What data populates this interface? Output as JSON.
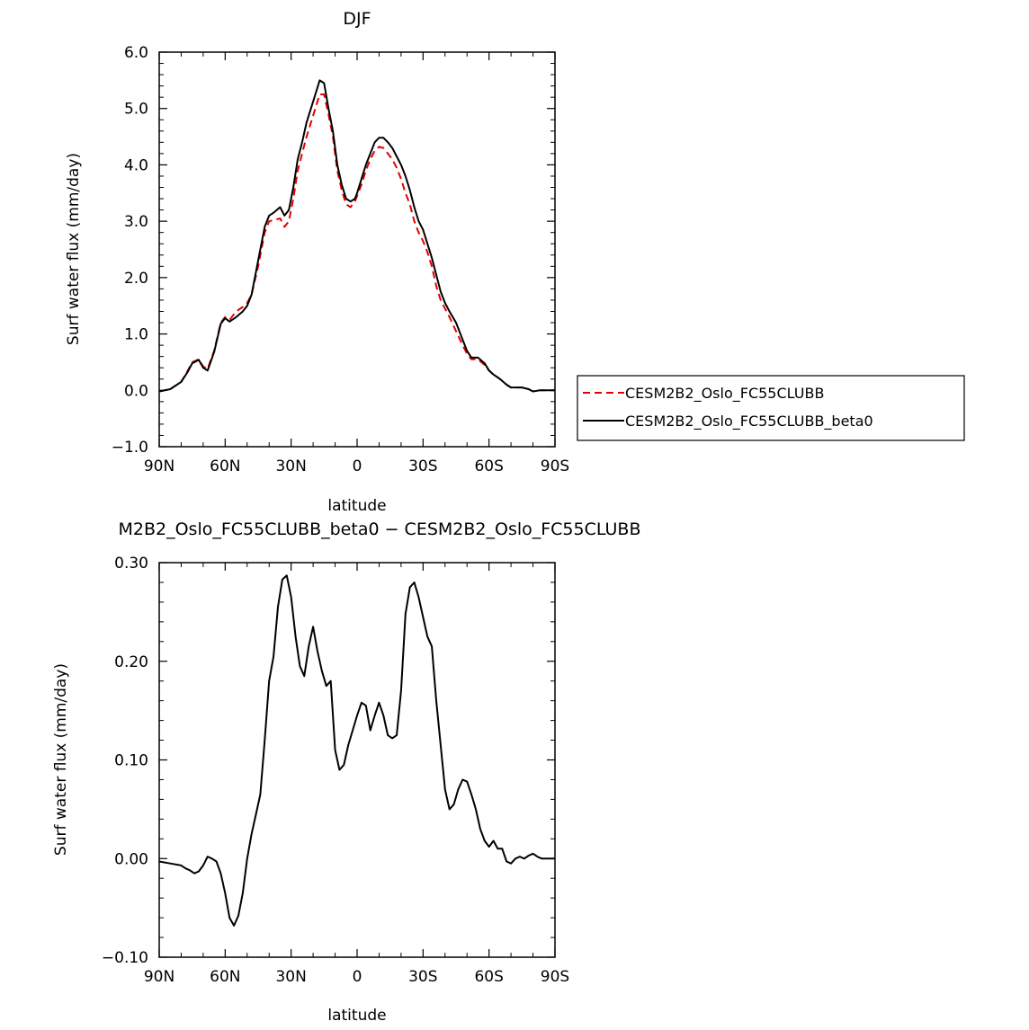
{
  "chart_data": [
    {
      "type": "line",
      "title": "DJF",
      "xlabel": "latitude",
      "ylabel": "Surf water flux (mm/day)",
      "xlim": [
        -90,
        90
      ],
      "ylim": [
        -1.0,
        6.0
      ],
      "x_ticks": [
        {
          "value": -90,
          "label": "90N"
        },
        {
          "value": -60,
          "label": "60N"
        },
        {
          "value": -30,
          "label": "30N"
        },
        {
          "value": 0,
          "label": "0"
        },
        {
          "value": 30,
          "label": "30S"
        },
        {
          "value": 60,
          "label": "60S"
        },
        {
          "value": 90,
          "label": "90S"
        }
      ],
      "y_ticks": [
        {
          "value": -1.0,
          "label": "−1.0"
        },
        {
          "value": 0.0,
          "label": "0.0"
        },
        {
          "value": 1.0,
          "label": "1.0"
        },
        {
          "value": 2.0,
          "label": "2.0"
        },
        {
          "value": 3.0,
          "label": "3.0"
        },
        {
          "value": 4.0,
          "label": "4.0"
        },
        {
          "value": 5.0,
          "label": "5.0"
        },
        {
          "value": 6.0,
          "label": "6.0"
        }
      ],
      "legend_position": "right",
      "series": [
        {
          "name": "CESM2B2_Oslo_FC55CLUBB",
          "color": "#e60000",
          "dash": "dashed",
          "x": [
            -90,
            -85,
            -80,
            -77,
            -75,
            -72,
            -70,
            -68,
            -65,
            -62,
            -60,
            -58,
            -55,
            -52,
            -50,
            -48,
            -45,
            -42,
            -40,
            -38,
            -35,
            -33,
            -31,
            -29,
            -27,
            -25,
            -23,
            -21,
            -19,
            -17,
            -15,
            -13,
            -11,
            -9,
            -7,
            -5,
            -3,
            -1,
            0,
            2,
            4,
            6,
            8,
            10,
            12,
            14,
            16,
            18,
            20,
            22,
            24,
            26,
            28,
            30,
            32,
            34,
            36,
            38,
            40,
            42,
            45,
            48,
            50,
            52,
            55,
            58,
            60,
            62,
            65,
            68,
            70,
            72,
            75,
            78,
            80,
            83,
            85,
            88,
            90
          ],
          "y": [
            -0.02,
            0.02,
            0.15,
            0.35,
            0.5,
            0.55,
            0.42,
            0.38,
            0.7,
            1.2,
            1.3,
            1.25,
            1.4,
            1.48,
            1.55,
            1.7,
            2.2,
            2.8,
            3.0,
            3.02,
            3.05,
            2.9,
            3.0,
            3.4,
            3.9,
            4.2,
            4.5,
            4.75,
            5.0,
            5.25,
            5.25,
            4.9,
            4.5,
            3.9,
            3.55,
            3.3,
            3.25,
            3.35,
            3.45,
            3.65,
            3.9,
            4.1,
            4.25,
            4.32,
            4.3,
            4.2,
            4.1,
            3.95,
            3.75,
            3.5,
            3.3,
            3.0,
            2.8,
            2.65,
            2.45,
            2.2,
            1.85,
            1.6,
            1.45,
            1.3,
            1.05,
            0.8,
            0.65,
            0.55,
            0.55,
            0.45,
            0.35,
            0.28,
            0.2,
            0.1,
            0.05,
            0.05,
            0.05,
            0.02,
            -0.02,
            0.0,
            0.0,
            0.0,
            0.0
          ]
        },
        {
          "name": "CESM2B2_Oslo_FC55CLUBB_beta0",
          "color": "#000000",
          "dash": "solid",
          "x": [
            -90,
            -85,
            -80,
            -77,
            -75,
            -72,
            -70,
            -68,
            -65,
            -62,
            -60,
            -58,
            -55,
            -52,
            -50,
            -48,
            -45,
            -42,
            -40,
            -38,
            -35,
            -33,
            -31,
            -29,
            -27,
            -25,
            -23,
            -21,
            -19,
            -17,
            -15,
            -13,
            -11,
            -9,
            -7,
            -5,
            -3,
            -1,
            0,
            2,
            4,
            6,
            8,
            10,
            12,
            14,
            16,
            18,
            20,
            22,
            24,
            26,
            28,
            30,
            32,
            34,
            36,
            38,
            40,
            42,
            45,
            48,
            50,
            52,
            55,
            58,
            60,
            62,
            65,
            68,
            70,
            72,
            75,
            78,
            80,
            83,
            85,
            88,
            90
          ],
          "y": [
            -0.02,
            0.02,
            0.15,
            0.33,
            0.48,
            0.54,
            0.4,
            0.35,
            0.68,
            1.18,
            1.28,
            1.22,
            1.3,
            1.4,
            1.5,
            1.7,
            2.3,
            2.9,
            3.1,
            3.15,
            3.25,
            3.1,
            3.2,
            3.6,
            4.1,
            4.4,
            4.75,
            5.0,
            5.25,
            5.5,
            5.45,
            5.0,
            4.6,
            4.0,
            3.65,
            3.4,
            3.35,
            3.4,
            3.5,
            3.75,
            4.0,
            4.2,
            4.4,
            4.48,
            4.48,
            4.4,
            4.3,
            4.15,
            4.0,
            3.8,
            3.55,
            3.25,
            3.0,
            2.85,
            2.6,
            2.35,
            2.05,
            1.75,
            1.55,
            1.4,
            1.2,
            0.9,
            0.7,
            0.58,
            0.58,
            0.48,
            0.35,
            0.28,
            0.2,
            0.1,
            0.05,
            0.05,
            0.05,
            0.02,
            -0.02,
            0.0,
            0.0,
            0.0,
            0.0
          ]
        }
      ]
    },
    {
      "type": "line",
      "title": "M2B2_Oslo_FC55CLUBB_beta0 − CESM2B2_Oslo_FC55CLUBB",
      "xlabel": "latitude",
      "ylabel": "Surf water flux (mm/day)",
      "xlim": [
        -90,
        90
      ],
      "ylim": [
        -0.1,
        0.3
      ],
      "x_ticks": [
        {
          "value": -90,
          "label": "90N"
        },
        {
          "value": -60,
          "label": "60N"
        },
        {
          "value": -30,
          "label": "30N"
        },
        {
          "value": 0,
          "label": "0"
        },
        {
          "value": 30,
          "label": "30S"
        },
        {
          "value": 60,
          "label": "60S"
        },
        {
          "value": 90,
          "label": "90S"
        }
      ],
      "y_ticks": [
        {
          "value": -0.1,
          "label": "−0.10"
        },
        {
          "value": 0.0,
          "label": "0.00"
        },
        {
          "value": 0.1,
          "label": "0.10"
        },
        {
          "value": 0.2,
          "label": "0.20"
        },
        {
          "value": 0.3,
          "label": "0.30"
        }
      ],
      "series": [
        {
          "color": "#000000",
          "dash": "solid",
          "x": [
            -90,
            -85,
            -80,
            -78,
            -76,
            -74,
            -72,
            -70,
            -68,
            -66,
            -64,
            -62,
            -60,
            -58,
            -56,
            -54,
            -52,
            -50,
            -48,
            -46,
            -44,
            -42,
            -40,
            -38,
            -36,
            -34,
            -32,
            -30,
            -28,
            -26,
            -24,
            -22,
            -20,
            -18,
            -16,
            -14,
            -12,
            -10,
            -8,
            -6,
            -4,
            -2,
            0,
            2,
            4,
            6,
            8,
            10,
            12,
            14,
            16,
            18,
            20,
            22,
            24,
            26,
            28,
            30,
            32,
            34,
            36,
            38,
            40,
            42,
            44,
            46,
            48,
            50,
            52,
            54,
            56,
            58,
            60,
            62,
            64,
            66,
            68,
            70,
            72,
            74,
            76,
            78,
            80,
            82,
            84,
            86,
            88,
            90
          ],
          "y": [
            -0.003,
            -0.005,
            -0.007,
            -0.01,
            -0.012,
            -0.015,
            -0.013,
            -0.007,
            0.002,
            0.0,
            -0.003,
            -0.015,
            -0.035,
            -0.06,
            -0.068,
            -0.058,
            -0.035,
            0.0,
            0.025,
            0.045,
            0.065,
            0.12,
            0.18,
            0.205,
            0.255,
            0.283,
            0.287,
            0.265,
            0.225,
            0.195,
            0.185,
            0.215,
            0.235,
            0.21,
            0.19,
            0.175,
            0.18,
            0.11,
            0.09,
            0.095,
            0.115,
            0.13,
            0.145,
            0.158,
            0.155,
            0.13,
            0.145,
            0.158,
            0.145,
            0.125,
            0.122,
            0.125,
            0.17,
            0.248,
            0.275,
            0.28,
            0.265,
            0.245,
            0.225,
            0.215,
            0.16,
            0.115,
            0.07,
            0.05,
            0.055,
            0.07,
            0.08,
            0.078,
            0.065,
            0.05,
            0.03,
            0.018,
            0.012,
            0.018,
            0.01,
            0.01,
            -0.003,
            -0.005,
            0.0,
            0.002,
            0.0,
            0.003,
            0.005,
            0.002,
            0.0,
            0.0,
            0.0,
            0.0
          ]
        }
      ]
    }
  ]
}
